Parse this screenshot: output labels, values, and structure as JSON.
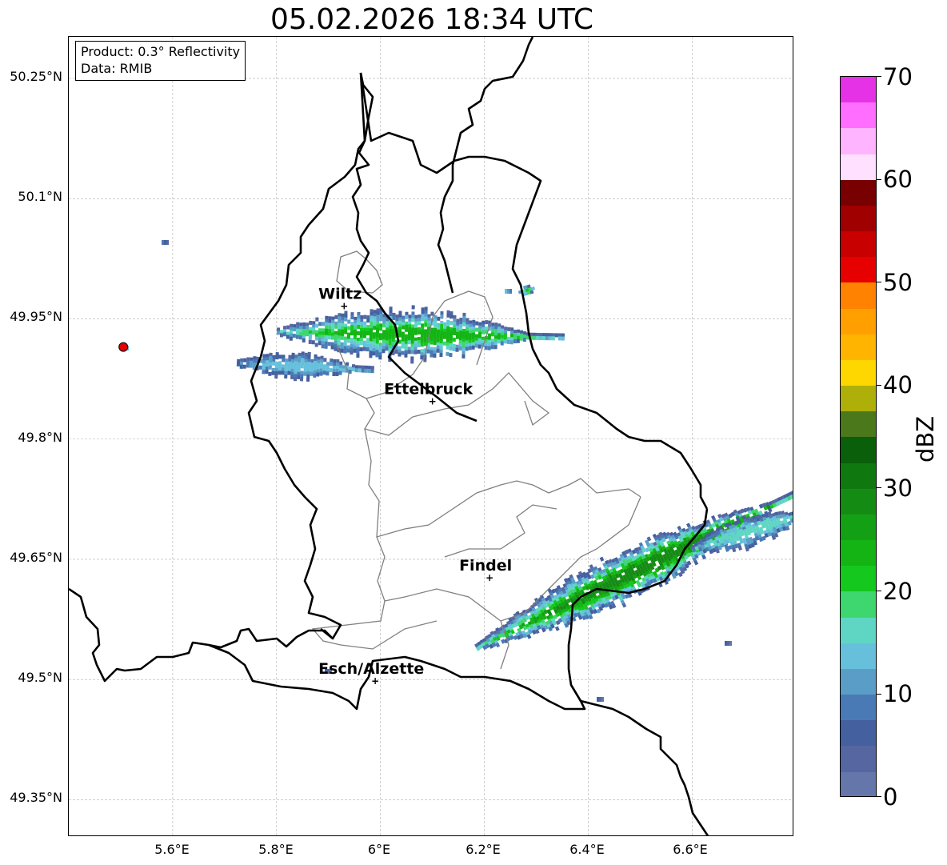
{
  "title": "05.02.2026 18:34 UTC",
  "info_box": {
    "product": "Product: 0.3° Reflectivity",
    "data_source": "Data: RMIB"
  },
  "axes": {
    "x_ticks": [
      "5.6°E",
      "5.8°E",
      "6°E",
      "6.2°E",
      "6.4°E",
      "6.6°E"
    ],
    "y_ticks": [
      "50.25°N",
      "50.1°N",
      "49.95°N",
      "49.8°N",
      "49.65°N",
      "49.5°N",
      "49.35°N"
    ]
  },
  "cities": [
    {
      "name": "Wiltz",
      "lon": 5.93,
      "lat": 49.966
    },
    {
      "name": "Ettelbruck",
      "lon": 6.1,
      "lat": 49.847
    },
    {
      "name": "Findel",
      "lon": 6.21,
      "lat": 49.627
    },
    {
      "name": "Esch/Alzette",
      "lon": 5.99,
      "lat": 49.498
    }
  ],
  "radar_site": {
    "lon": 5.505,
    "lat": 49.915,
    "color": "#e00000"
  },
  "colorbar": {
    "label": "dBZ",
    "min": 0,
    "max": 70,
    "step": 2.5,
    "ticks": [
      "0",
      "10",
      "20",
      "30",
      "40",
      "50",
      "60",
      "70"
    ],
    "colors": [
      "#6577aa",
      "#5566a0",
      "#44609f",
      "#4a7ab5",
      "#5a9ec8",
      "#66c0dc",
      "#5fd6c4",
      "#3ed66e",
      "#14c81e",
      "#14b414",
      "#14a014",
      "#148c14",
      "#0f780f",
      "#0a5f0a",
      "#4a781a",
      "#afaf0a",
      "#ffd700",
      "#ffb400",
      "#ffa000",
      "#ff8200",
      "#e60000",
      "#c80000",
      "#a00000",
      "#780000",
      "#ffe0ff",
      "#ffb4ff",
      "#ff6eff",
      "#e632e6"
    ]
  },
  "colors": {
    "national_border": "#000000",
    "canton_border": "#808080",
    "grid": "#b0b0b0"
  }
}
